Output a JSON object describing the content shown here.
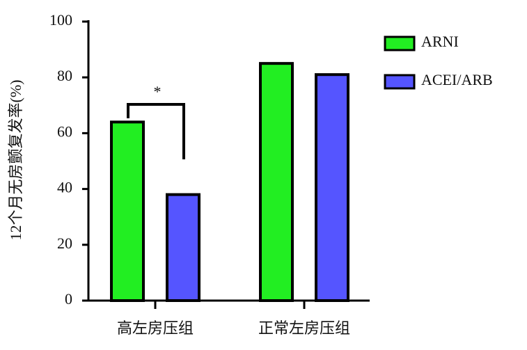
{
  "chart_data": {
    "type": "bar",
    "y_label": "12个月无房颤复发率(%)",
    "categories": [
      "高左房压组",
      "正常左房压组"
    ],
    "series": [
      {
        "name": "ARNI",
        "color": "#22ee22",
        "values": [
          64,
          85
        ]
      },
      {
        "name": "ACEI/ARB",
        "color": "#5555ff",
        "values": [
          38,
          81
        ]
      }
    ],
    "ylim": [
      0,
      100
    ],
    "yticks": [
      0,
      20,
      40,
      60,
      80,
      100
    ],
    "annotation": "*",
    "legend": "right"
  }
}
